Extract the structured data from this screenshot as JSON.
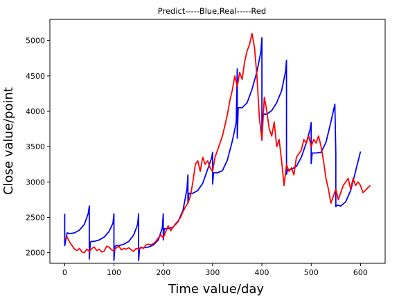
{
  "chart_data": {
    "type": "line",
    "title": "Predict-----Blue,Real-----Red",
    "xlabel": "Time value/day",
    "ylabel": "Close value/point",
    "xlim": [
      -30,
      650
    ],
    "ylim": [
      1850,
      5300
    ],
    "xticks": [
      0,
      100,
      200,
      300,
      400,
      500,
      600
    ],
    "yticks": [
      2000,
      2500,
      3000,
      3500,
      4000,
      4500,
      5000
    ],
    "grid": false,
    "legend": "none",
    "colors": {
      "predict": "#0000ff",
      "real": "#ff0000"
    },
    "series": [
      {
        "color": "#0000ff",
        "x": [
          0,
          0,
          5,
          10,
          20,
          30,
          40,
          48,
          50,
          50,
          52,
          55,
          60,
          70,
          80,
          90,
          98,
          100,
          100,
          102,
          105,
          110,
          120,
          130,
          140,
          148,
          150,
          150,
          152,
          155,
          160,
          170,
          180,
          190,
          198,
          200,
          200,
          202,
          205,
          210,
          220,
          230,
          240,
          248,
          250,
          250,
          252,
          255,
          260,
          270,
          280,
          290,
          298,
          300,
          300,
          302,
          305,
          310,
          320,
          330,
          340,
          348,
          350,
          350,
          352,
          355,
          360,
          370,
          380,
          390,
          398,
          400,
          400,
          402,
          405,
          410,
          420,
          430,
          440,
          448,
          450,
          450,
          452,
          455,
          460,
          470,
          480,
          490,
          498,
          500,
          500,
          502,
          505,
          510,
          520,
          530,
          540,
          548,
          550,
          550,
          552,
          555,
          560,
          570,
          580,
          590,
          600
        ],
        "y": [
          2550,
          2100,
          2280,
          2270,
          2280,
          2320,
          2400,
          2560,
          2660,
          1910,
          2150,
          2160,
          2160,
          2180,
          2220,
          2300,
          2420,
          2550,
          1890,
          2090,
          2100,
          2100,
          2120,
          2160,
          2250,
          2400,
          2550,
          1890,
          2060,
          2070,
          2070,
          2080,
          2110,
          2180,
          2350,
          2550,
          2180,
          2340,
          2340,
          2340,
          2360,
          2440,
          2600,
          2900,
          3100,
          2700,
          2840,
          2840,
          2840,
          2880,
          2980,
          3180,
          3340,
          3420,
          2970,
          3130,
          3130,
          3130,
          3160,
          3310,
          3580,
          3840,
          4600,
          3620,
          4050,
          4050,
          4050,
          4120,
          4310,
          4560,
          4840,
          5040,
          3590,
          3960,
          3960,
          3960,
          4010,
          4120,
          4290,
          4560,
          4720,
          3110,
          3170,
          3170,
          3180,
          3220,
          3350,
          3550,
          3750,
          3840,
          3260,
          3410,
          3410,
          3410,
          3420,
          3560,
          3850,
          4100,
          3400,
          2650,
          2670,
          2670,
          2660,
          2720,
          2880,
          3150,
          3430
        ]
      },
      {
        "color": "#ff0000",
        "x": [
          0,
          5,
          10,
          15,
          20,
          25,
          30,
          35,
          40,
          45,
          50,
          55,
          60,
          65,
          70,
          75,
          80,
          85,
          90,
          95,
          100,
          105,
          110,
          115,
          120,
          125,
          130,
          135,
          140,
          145,
          150,
          155,
          160,
          165,
          170,
          175,
          180,
          185,
          190,
          195,
          200,
          205,
          210,
          215,
          220,
          225,
          230,
          235,
          240,
          245,
          250,
          255,
          260,
          265,
          270,
          275,
          280,
          285,
          290,
          295,
          300,
          305,
          310,
          315,
          320,
          325,
          330,
          335,
          340,
          345,
          350,
          355,
          360,
          365,
          370,
          375,
          380,
          385,
          390,
          395,
          400,
          405,
          410,
          415,
          420,
          425,
          430,
          435,
          440,
          445,
          450,
          455,
          460,
          465,
          470,
          475,
          480,
          485,
          490,
          495,
          500,
          505,
          510,
          515,
          520,
          525,
          530,
          535,
          540,
          545,
          550,
          555,
          560,
          565,
          570,
          575,
          580,
          585,
          590,
          595,
          600,
          605,
          610,
          615,
          620
        ],
        "y": [
          2200,
          2220,
          2150,
          2100,
          2050,
          2030,
          2060,
          2010,
          2000,
          2050,
          2020,
          2060,
          2080,
          2030,
          2050,
          2010,
          2020,
          2090,
          2080,
          2040,
          2030,
          2070,
          2090,
          2040,
          2060,
          2050,
          2070,
          2040,
          2020,
          2060,
          2050,
          2080,
          2060,
          2110,
          2120,
          2110,
          2130,
          2160,
          2210,
          2250,
          2210,
          2300,
          2380,
          2310,
          2360,
          2410,
          2450,
          2500,
          2580,
          2650,
          2700,
          2800,
          3000,
          3250,
          3300,
          3150,
          3350,
          3250,
          3300,
          3200,
          3150,
          3350,
          3450,
          3550,
          3650,
          3800,
          3950,
          4150,
          4300,
          4500,
          4350,
          4550,
          4450,
          4700,
          4850,
          4950,
          5100,
          4900,
          4500,
          3900,
          3600,
          4200,
          4000,
          3750,
          3650,
          3850,
          3500,
          3600,
          3300,
          2950,
          3250,
          3150,
          3200,
          3100,
          3350,
          3400,
          3450,
          3600,
          3550,
          3650,
          3500,
          3600,
          3550,
          3650,
          3500,
          3300,
          3050,
          2900,
          2700,
          2800,
          2900,
          2750,
          2850,
          2950,
          3000,
          3050,
          2900,
          3050,
          2950,
          3000,
          2950,
          2850,
          2880,
          2920,
          2950
        ]
      }
    ]
  }
}
